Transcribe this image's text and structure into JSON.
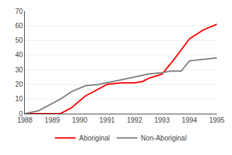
{
  "chart_data": {
    "type": "line",
    "series": [
      {
        "name": "Aboriginal",
        "color": "#ff0000",
        "x": [
          1988.0,
          1988.5,
          1989.0,
          1989.3,
          1989.7,
          1990.2,
          1990.7,
          1991.0,
          1991.5,
          1992.0,
          1992.3,
          1992.5,
          1993.0,
          1993.4,
          1994.0,
          1994.5,
          1995.0
        ],
        "values": [
          0,
          0,
          0,
          0,
          4,
          12,
          17,
          20,
          21,
          21,
          22,
          24,
          27,
          36,
          51,
          57,
          61
        ]
      },
      {
        "name": "Non-Aboriginal",
        "color": "#808080",
        "x": [
          1988.0,
          1988.5,
          1989.0,
          1989.3,
          1989.7,
          1990.2,
          1990.7,
          1991.0,
          1991.5,
          1992.0,
          1992.5,
          1993.0,
          1993.3,
          1993.7,
          1994.0,
          1994.5,
          1995.0
        ],
        "values": [
          0,
          2,
          7,
          10,
          15,
          19,
          20,
          21,
          23,
          25,
          27,
          28,
          29,
          29,
          36,
          37,
          38
        ]
      }
    ],
    "xlim": [
      1988,
      1995
    ],
    "xticks": [
      1988,
      1989,
      1990,
      1991,
      1992,
      1993,
      1994,
      1995
    ],
    "ylim": [
      0,
      70
    ],
    "yticks": [
      0,
      10,
      20,
      30,
      40,
      50,
      60,
      70
    ],
    "grid": true,
    "legend": "bottom"
  }
}
